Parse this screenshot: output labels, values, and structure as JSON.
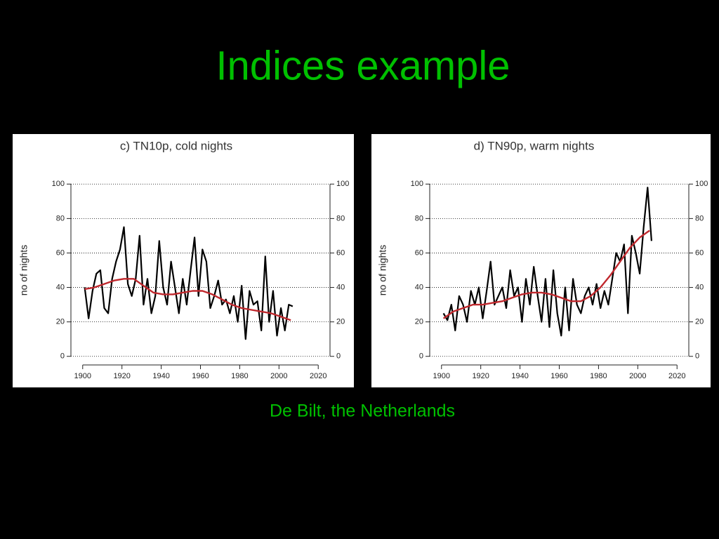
{
  "title": "Indices example",
  "caption": "De Bilt, the Netherlands",
  "chart_data": [
    {
      "type": "line",
      "title": "c) TN10p, cold nights",
      "y_label": "no of nights",
      "xlim": [
        1894,
        2026
      ],
      "xticks": [
        1900,
        1920,
        1940,
        1960,
        1980,
        2000,
        2020
      ],
      "ylim": [
        -5,
        105
      ],
      "yticks": [
        0,
        20,
        40,
        60,
        80,
        100
      ],
      "y2lim": [
        -5,
        105
      ],
      "y2ticks": [
        0,
        20,
        40,
        60,
        80,
        100
      ],
      "grid": true,
      "series": [
        {
          "color": "#000000",
          "x": [
            1901,
            1903,
            1905,
            1907,
            1909,
            1911,
            1913,
            1915,
            1917,
            1919,
            1921,
            1923,
            1925,
            1927,
            1929,
            1931,
            1933,
            1935,
            1937,
            1939,
            1941,
            1943,
            1945,
            1947,
            1949,
            1951,
            1953,
            1955,
            1957,
            1959,
            1961,
            1963,
            1965,
            1967,
            1969,
            1971,
            1973,
            1975,
            1977,
            1979,
            1981,
            1983,
            1985,
            1987,
            1989,
            1991,
            1993,
            1995,
            1997,
            1999,
            2001,
            2003,
            2005,
            2007
          ],
          "values": [
            40,
            22,
            38,
            48,
            50,
            28,
            25,
            45,
            55,
            62,
            75,
            42,
            35,
            45,
            70,
            30,
            45,
            25,
            35,
            67,
            40,
            30,
            55,
            40,
            25,
            45,
            30,
            50,
            69,
            35,
            62,
            55,
            28,
            35,
            44,
            30,
            33,
            25,
            35,
            20,
            41,
            10,
            38,
            30,
            32,
            15,
            58,
            20,
            38,
            12,
            28,
            15,
            30,
            29
          ]
        },
        {
          "color": "#c0282d",
          "x": [
            1901,
            1906,
            1911,
            1916,
            1921,
            1926,
            1931,
            1936,
            1941,
            1946,
            1951,
            1956,
            1961,
            1966,
            1971,
            1976,
            1981,
            1986,
            1991,
            1996,
            2001,
            2006
          ],
          "values": [
            39,
            40,
            42,
            44,
            45,
            45,
            41,
            37,
            36,
            36,
            37,
            38,
            38,
            36,
            33,
            30,
            28,
            27,
            26,
            25,
            23,
            21
          ]
        }
      ]
    },
    {
      "type": "line",
      "title": "d) TN90p, warm nights",
      "y_label": "no of nights",
      "xlim": [
        1894,
        2026
      ],
      "xticks": [
        1900,
        1920,
        1940,
        1960,
        1980,
        2000,
        2020
      ],
      "ylim": [
        -5,
        105
      ],
      "yticks": [
        0,
        20,
        40,
        60,
        80,
        100
      ],
      "y2lim": [
        -5,
        105
      ],
      "y2ticks": [
        0,
        20,
        40,
        60,
        80,
        100
      ],
      "grid": true,
      "series": [
        {
          "color": "#000000",
          "x": [
            1901,
            1903,
            1905,
            1907,
            1909,
            1911,
            1913,
            1915,
            1917,
            1919,
            1921,
            1923,
            1925,
            1927,
            1929,
            1931,
            1933,
            1935,
            1937,
            1939,
            1941,
            1943,
            1945,
            1947,
            1949,
            1951,
            1953,
            1955,
            1957,
            1959,
            1961,
            1963,
            1965,
            1967,
            1969,
            1971,
            1973,
            1975,
            1977,
            1979,
            1981,
            1983,
            1985,
            1987,
            1989,
            1991,
            1993,
            1995,
            1997,
            1999,
            2001,
            2003,
            2005,
            2007
          ],
          "values": [
            25,
            21,
            30,
            15,
            35,
            30,
            20,
            38,
            30,
            40,
            22,
            38,
            55,
            30,
            35,
            40,
            28,
            50,
            35,
            40,
            20,
            45,
            30,
            52,
            35,
            20,
            45,
            17,
            50,
            25,
            12,
            40,
            15,
            45,
            30,
            25,
            35,
            40,
            30,
            42,
            28,
            38,
            30,
            45,
            60,
            55,
            65,
            25,
            70,
            60,
            48,
            75,
            98,
            67
          ]
        },
        {
          "color": "#c0282d",
          "x": [
            1901,
            1906,
            1911,
            1916,
            1921,
            1926,
            1931,
            1936,
            1941,
            1946,
            1951,
            1956,
            1961,
            1966,
            1971,
            1976,
            1981,
            1986,
            1991,
            1996,
            2001,
            2006
          ],
          "values": [
            22,
            26,
            28,
            30,
            30,
            31,
            32,
            34,
            36,
            37,
            37,
            36,
            34,
            32,
            32,
            35,
            40,
            47,
            55,
            63,
            69,
            73
          ]
        }
      ]
    }
  ]
}
